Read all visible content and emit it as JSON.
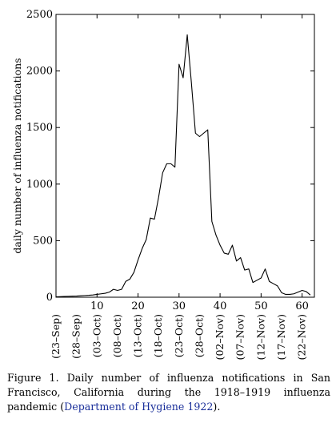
{
  "chart_data": {
    "type": "line",
    "ylabel": "daily number of influenza notifications",
    "xlim": [
      0,
      63
    ],
    "ylim": [
      0,
      2500
    ],
    "xticks": [
      10,
      20,
      30,
      40,
      50,
      60
    ],
    "yticks": [
      0,
      500,
      1000,
      1500,
      2000,
      2500
    ],
    "date_ticks": [
      {
        "x": 0,
        "label": "(23–Sep)"
      },
      {
        "x": 5,
        "label": "(28–Sep)"
      },
      {
        "x": 10,
        "label": "(03–Oct)"
      },
      {
        "x": 15,
        "label": "(08–Oct)"
      },
      {
        "x": 20,
        "label": "(13–Oct)"
      },
      {
        "x": 25,
        "label": "(18–Oct)"
      },
      {
        "x": 30,
        "label": "(23–Oct)"
      },
      {
        "x": 35,
        "label": "(28–Oct)"
      },
      {
        "x": 40,
        "label": "(02–Nov)"
      },
      {
        "x": 45,
        "label": "(07–Nov)"
      },
      {
        "x": 50,
        "label": "(12–Nov)"
      },
      {
        "x": 55,
        "label": "(17–Nov)"
      },
      {
        "x": 60,
        "label": "(22–Nov)"
      }
    ],
    "grid": false,
    "series": [
      {
        "x": [
          0,
          1,
          2,
          3,
          4,
          5,
          6,
          7,
          8,
          9,
          10,
          11,
          12,
          13,
          14,
          15,
          16,
          17,
          18,
          19,
          20,
          21,
          22,
          23,
          24,
          25,
          26,
          27,
          28,
          29,
          30,
          31,
          32,
          33,
          34,
          35,
          36,
          37,
          38,
          39,
          40,
          41,
          42,
          43,
          44,
          45,
          46,
          47,
          48,
          49,
          50,
          51,
          52,
          53,
          54,
          55,
          56,
          57,
          58,
          59,
          60,
          61,
          62
        ],
        "y": [
          3,
          5,
          7,
          8,
          9,
          10,
          13,
          15,
          17,
          20,
          25,
          30,
          35,
          45,
          70,
          60,
          70,
          140,
          160,
          220,
          330,
          430,
          510,
          700,
          690,
          880,
          1100,
          1180,
          1180,
          1150,
          2060,
          1940,
          2320,
          1900,
          1450,
          1420,
          1450,
          1480,
          670,
          550,
          460,
          390,
          380,
          460,
          320,
          350,
          240,
          250,
          130,
          150,
          170,
          250,
          140,
          120,
          100,
          40,
          25,
          25,
          30,
          45,
          60,
          50,
          20
        ],
        "color": "#000000"
      }
    ]
  },
  "caption": {
    "text": "Figure 1. Daily number of influenza notifications in San Francisco, California during the 1918–1919 influenza pandemic (",
    "reference": "Department of Hygiene 1922",
    "end": ")."
  }
}
